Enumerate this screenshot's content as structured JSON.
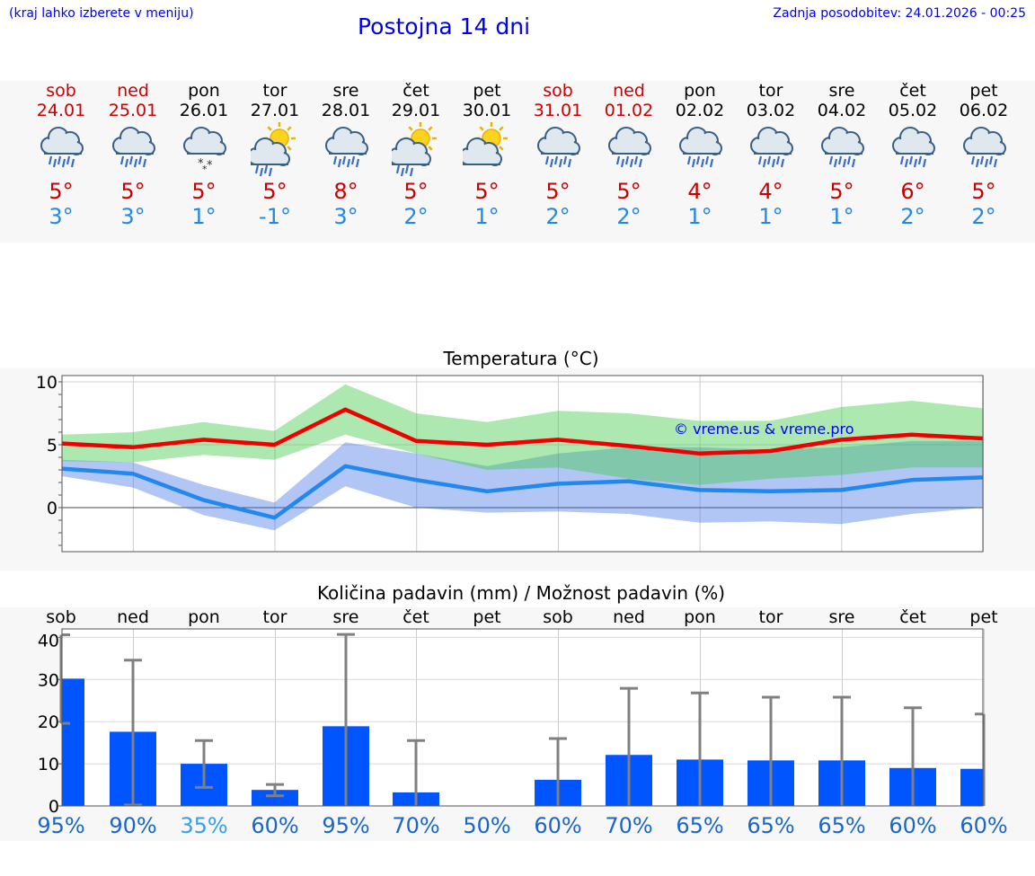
{
  "header": {
    "hint": "(kraj lahko izberete v meniju)",
    "title": "Postojna 14 dni",
    "updated": "Zadnja posodobitev: 24.01.2026 - 00:25"
  },
  "colors": {
    "weekend": "#cc0000",
    "weekday": "#000000",
    "max_line": "#ee0000",
    "min_line": "#2288ee",
    "bar": "#0055ff",
    "link": "#0000ee"
  },
  "days": [
    {
      "name": "sob",
      "date": "24.01",
      "weekend": true,
      "icon": "rain-cloud-icon",
      "tmax": "5°",
      "tmin": "3°",
      "chance": "95%"
    },
    {
      "name": "ned",
      "date": "25.01",
      "weekend": true,
      "icon": "rain-cloud-icon",
      "tmax": "5°",
      "tmin": "3°",
      "chance": "90%"
    },
    {
      "name": "pon",
      "date": "26.01",
      "weekend": false,
      "icon": "snow-cloud-icon",
      "tmax": "5°",
      "tmin": "1°",
      "chance": "35%"
    },
    {
      "name": "tor",
      "date": "27.01",
      "weekend": false,
      "icon": "sun-rain-cloud-icon",
      "tmax": "5°",
      "tmin": "-1°",
      "chance": "60%"
    },
    {
      "name": "sre",
      "date": "28.01",
      "weekend": false,
      "icon": "rain-cloud-icon",
      "tmax": "8°",
      "tmin": "3°",
      "chance": "95%"
    },
    {
      "name": "čet",
      "date": "29.01",
      "weekend": false,
      "icon": "sun-rain-cloud-icon",
      "tmax": "5°",
      "tmin": "2°",
      "chance": "70%"
    },
    {
      "name": "pet",
      "date": "30.01",
      "weekend": false,
      "icon": "sun-cloud-icon",
      "tmax": "5°",
      "tmin": "1°",
      "chance": "50%"
    },
    {
      "name": "sob",
      "date": "31.01",
      "weekend": true,
      "icon": "rain-cloud-icon",
      "tmax": "5°",
      "tmin": "2°",
      "chance": "60%"
    },
    {
      "name": "ned",
      "date": "01.02",
      "weekend": true,
      "icon": "rain-cloud-icon",
      "tmax": "5°",
      "tmin": "2°",
      "chance": "70%"
    },
    {
      "name": "pon",
      "date": "02.02",
      "weekend": false,
      "icon": "rain-cloud-icon",
      "tmax": "4°",
      "tmin": "1°",
      "chance": "65%"
    },
    {
      "name": "tor",
      "date": "03.02",
      "weekend": false,
      "icon": "rain-cloud-icon",
      "tmax": "4°",
      "tmin": "1°",
      "chance": "65%"
    },
    {
      "name": "sre",
      "date": "04.02",
      "weekend": false,
      "icon": "rain-cloud-icon",
      "tmax": "5°",
      "tmin": "1°",
      "chance": "65%"
    },
    {
      "name": "čet",
      "date": "05.02",
      "weekend": false,
      "icon": "rain-cloud-icon",
      "tmax": "6°",
      "tmin": "2°",
      "chance": "60%"
    },
    {
      "name": "pet",
      "date": "06.02",
      "weekend": false,
      "icon": "rain-cloud-icon",
      "tmax": "5°",
      "tmin": "2°",
      "chance": "60%"
    }
  ],
  "chart_data": [
    {
      "type": "line",
      "title": "Temperatura (°C)",
      "ylim": [
        -3.5,
        10.5
      ],
      "yticks": [
        0,
        5,
        10
      ],
      "watermark": "© vreme.us & vreme.pro",
      "x": [
        0,
        1,
        2,
        3,
        4,
        5,
        6,
        7,
        8,
        9,
        10,
        11,
        12,
        13
      ],
      "series": [
        {
          "name": "max",
          "values": [
            5.1,
            4.8,
            5.4,
            5.0,
            7.8,
            5.3,
            5.0,
            5.4,
            4.9,
            4.3,
            4.5,
            5.4,
            5.8,
            5.5
          ],
          "band_low": [
            3.7,
            3.6,
            4.2,
            3.8,
            5.8,
            4.3,
            3.0,
            3.2,
            2.3,
            1.8,
            2.3,
            2.6,
            3.2,
            3.2
          ],
          "band_high": [
            5.8,
            6.0,
            6.8,
            6.1,
            9.8,
            7.5,
            6.8,
            7.7,
            7.5,
            6.9,
            6.9,
            8.0,
            8.5,
            7.9
          ]
        },
        {
          "name": "min",
          "values": [
            3.1,
            2.7,
            0.6,
            -0.8,
            3.3,
            2.2,
            1.3,
            1.9,
            2.1,
            1.4,
            1.3,
            1.4,
            2.2,
            2.4
          ],
          "band_low": [
            2.5,
            1.6,
            -0.6,
            -1.8,
            1.7,
            0.0,
            -0.4,
            -0.3,
            -0.5,
            -1.2,
            -1.1,
            -1.3,
            -0.5,
            0.0
          ],
          "band_high": [
            3.8,
            3.6,
            1.8,
            0.4,
            5.2,
            4.3,
            3.3,
            4.3,
            4.8,
            4.8,
            4.6,
            4.8,
            5.3,
            5.3
          ]
        }
      ]
    },
    {
      "type": "bar",
      "title": "Količina padavin (mm) / Možnost padavin (%)",
      "ylim": [
        0,
        42
      ],
      "yticks": [
        0,
        10,
        20,
        30,
        40
      ],
      "categories": [
        "sob",
        "ned",
        "pon",
        "tor",
        "sre",
        "čet",
        "pet",
        "sob",
        "ned",
        "pon",
        "tor",
        "sre",
        "čet",
        "pet"
      ],
      "values": [
        30.2,
        17.6,
        10.0,
        3.8,
        18.9,
        3.2,
        0.0,
        6.2,
        12.1,
        11.0,
        10.8,
        10.8,
        9.0,
        8.8
      ],
      "err_low": [
        19.6,
        0.2,
        4.4,
        2.4,
        0.0,
        0.0,
        0.0,
        0.0,
        0.0,
        0.0,
        0.0,
        0.0,
        0.0,
        0.0
      ],
      "err_high": [
        40.6,
        34.6,
        15.5,
        5.1,
        40.7,
        15.5,
        0.0,
        16.0,
        27.9,
        26.8,
        25.8,
        25.8,
        23.3,
        21.8
      ],
      "chance": [
        "95%",
        "90%",
        "35%",
        "60%",
        "95%",
        "70%",
        "50%",
        "60%",
        "70%",
        "65%",
        "65%",
        "65%",
        "60%",
        "60%"
      ]
    }
  ]
}
